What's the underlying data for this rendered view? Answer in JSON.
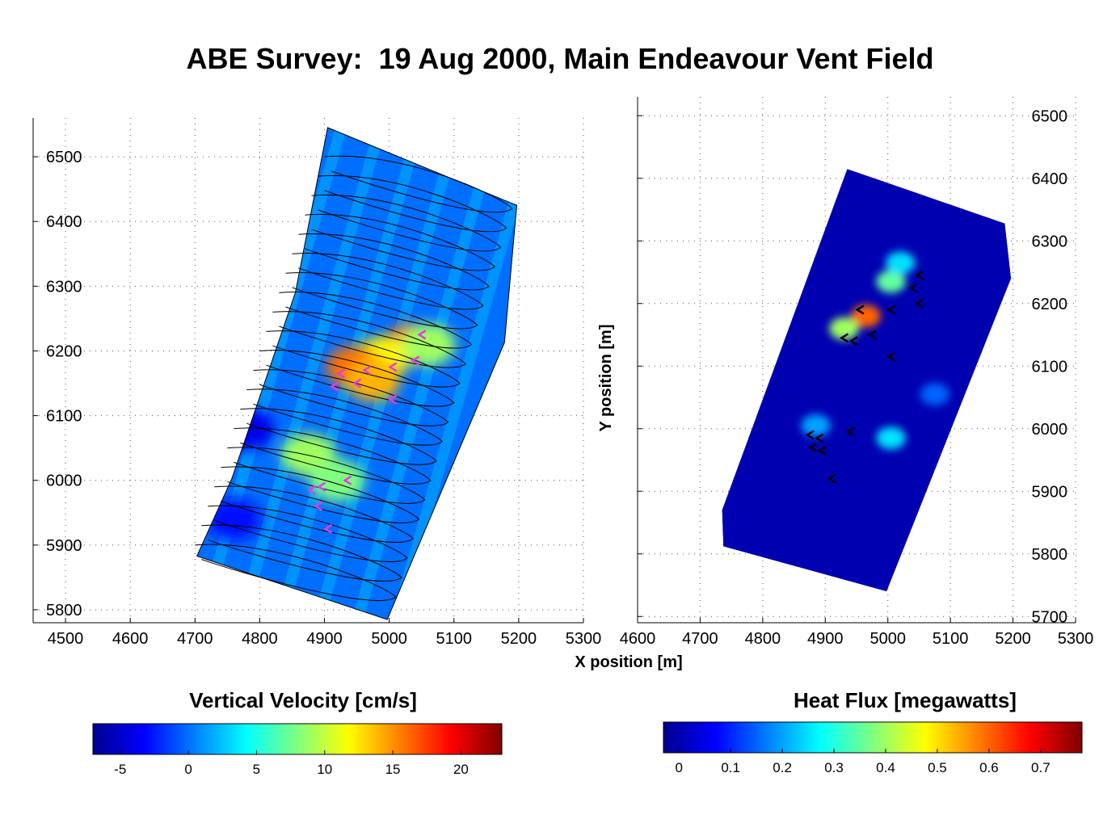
{
  "page": {
    "title": "ABE Survey:  19 Aug 2000, Main Endeavour Vent Field"
  },
  "shared": {
    "xlabel": "X position [m]",
    "ylabel": "Y position [m]"
  },
  "colormap": [
    "#00008f",
    "#0000ff",
    "#0080ff",
    "#00ffff",
    "#80ff80",
    "#ffff00",
    "#ff8000",
    "#ff0000",
    "#800000"
  ],
  "chart_data": [
    {
      "type": "heatmap",
      "panel": "left",
      "xlim": [
        4450,
        5300
      ],
      "ylim": [
        5780,
        6560
      ],
      "xticks": [
        4500,
        4600,
        4700,
        4800,
        4900,
        5000,
        5100,
        5200,
        5300
      ],
      "yticks": [
        5800,
        5900,
        6000,
        6100,
        6200,
        6300,
        6400,
        6500
      ],
      "ytick_side": "left",
      "grid": true,
      "survey_outline": [
        [
          4905,
          6545
        ],
        [
          5197,
          6425
        ],
        [
          5178,
          6213
        ],
        [
          4997,
          5785
        ],
        [
          4703,
          5883
        ],
        [
          4757,
          6003
        ],
        [
          4855,
          6290
        ],
        [
          4905,
          6545
        ]
      ],
      "hotspots": [
        {
          "x": 5035,
          "y": 6210,
          "value": 17
        },
        {
          "x": 4990,
          "y": 6190,
          "value": 12
        },
        {
          "x": 4945,
          "y": 6175,
          "value": 16
        },
        {
          "x": 4975,
          "y": 6155,
          "value": 14
        },
        {
          "x": 4875,
          "y": 6040,
          "value": 9
        },
        {
          "x": 4920,
          "y": 6000,
          "value": 8
        },
        {
          "x": 5060,
          "y": 6210,
          "value": 9
        },
        {
          "x": 4780,
          "y": 6080,
          "value": -4
        },
        {
          "x": 4760,
          "y": 5940,
          "value": -3
        }
      ],
      "vent_markers": [
        {
          "x": 5050,
          "y": 6225
        },
        {
          "x": 5040,
          "y": 6185
        },
        {
          "x": 5005,
          "y": 6175
        },
        {
          "x": 4950,
          "y": 6150
        },
        {
          "x": 4915,
          "y": 6145
        },
        {
          "x": 4925,
          "y": 6165
        },
        {
          "x": 4965,
          "y": 6170
        },
        {
          "x": 4880,
          "y": 5985
        },
        {
          "x": 4895,
          "y": 5990
        },
        {
          "x": 4935,
          "y": 6000
        },
        {
          "x": 4890,
          "y": 5960
        },
        {
          "x": 4905,
          "y": 5925
        },
        {
          "x": 5005,
          "y": 6125
        }
      ],
      "colorbar": {
        "label": "Vertical Velocity [cm/s]",
        "range": [
          -7,
          23
        ],
        "ticks": [
          -5,
          0,
          5,
          10,
          15,
          20
        ]
      }
    },
    {
      "type": "heatmap",
      "panel": "right",
      "xlim": [
        4600,
        5300
      ],
      "ylim": [
        5690,
        6530
      ],
      "xticks": [
        4600,
        4700,
        4800,
        4900,
        5000,
        5100,
        5200,
        5300
      ],
      "yticks": [
        5700,
        5800,
        5900,
        6000,
        6100,
        6200,
        6300,
        6400,
        6500
      ],
      "ytick_side": "right",
      "grid": true,
      "survey_outline": [
        [
          4935,
          6415
        ],
        [
          5187,
          6328
        ],
        [
          5197,
          6240
        ],
        [
          4998,
          5740
        ],
        [
          4737,
          5812
        ],
        [
          4735,
          5870
        ],
        [
          4935,
          6415
        ]
      ],
      "hotspots": [
        {
          "x": 4965,
          "y": 6180,
          "value": 0.6
        },
        {
          "x": 4930,
          "y": 6160,
          "value": 0.4
        },
        {
          "x": 5005,
          "y": 6235,
          "value": 0.35
        },
        {
          "x": 5020,
          "y": 6265,
          "value": 0.25
        },
        {
          "x": 5005,
          "y": 5985,
          "value": 0.25
        },
        {
          "x": 4885,
          "y": 6005,
          "value": 0.2
        },
        {
          "x": 5075,
          "y": 6055,
          "value": 0.15
        }
      ],
      "vent_markers": [
        {
          "x": 5050,
          "y": 6245
        },
        {
          "x": 5040,
          "y": 6225
        },
        {
          "x": 5050,
          "y": 6200
        },
        {
          "x": 5005,
          "y": 6190
        },
        {
          "x": 4955,
          "y": 6190
        },
        {
          "x": 4930,
          "y": 6145
        },
        {
          "x": 4945,
          "y": 6140
        },
        {
          "x": 4975,
          "y": 6150
        },
        {
          "x": 5005,
          "y": 6115
        },
        {
          "x": 4875,
          "y": 5990
        },
        {
          "x": 4890,
          "y": 5985
        },
        {
          "x": 4880,
          "y": 5970
        },
        {
          "x": 4895,
          "y": 5965
        },
        {
          "x": 4940,
          "y": 5995
        },
        {
          "x": 4910,
          "y": 5920
        }
      ],
      "colorbar": {
        "label": "Heat Flux [megawatts]",
        "range": [
          -0.03,
          0.78
        ],
        "ticks": [
          0,
          0.1,
          0.2,
          0.3,
          0.4,
          0.5,
          0.6,
          0.7
        ]
      }
    }
  ]
}
